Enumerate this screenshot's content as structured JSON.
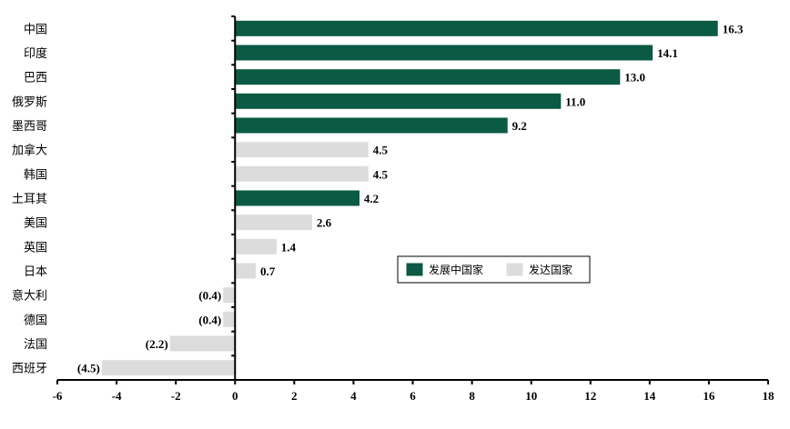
{
  "chart_data": {
    "type": "bar",
    "orientation": "horizontal",
    "categories": [
      "中国",
      "印度",
      "巴西",
      "俄罗斯",
      "墨西哥",
      "加拿大",
      "韩国",
      "土耳其",
      "美国",
      "英国",
      "日本",
      "意大利",
      "德国",
      "法国",
      "西班牙"
    ],
    "values": [
      16.3,
      14.1,
      13.0,
      11.0,
      9.2,
      4.5,
      4.5,
      4.2,
      2.6,
      1.4,
      0.7,
      -0.4,
      -0.4,
      -2.2,
      -4.5
    ],
    "value_labels": [
      "16.3",
      "14.1",
      "13.0",
      "11.0",
      "9.2",
      "4.5",
      "4.5",
      "4.2",
      "2.6",
      "1.4",
      "0.7",
      "(0.4)",
      "(0.4)",
      "(2.2)",
      "(4.5)"
    ],
    "groups": [
      "developing",
      "developing",
      "developing",
      "developing",
      "developing",
      "developed",
      "developed",
      "developing",
      "developed",
      "developed",
      "developed",
      "developed",
      "developed",
      "developed",
      "developed"
    ],
    "series": [
      {
        "key": "developing",
        "name": "发展中国家",
        "color": "#0b5a43"
      },
      {
        "key": "developed",
        "name": "发达国家",
        "color": "#dcdcdc"
      }
    ],
    "xlim": [
      -6,
      18
    ],
    "xticks": [
      "-6",
      "-4",
      "-2",
      "0",
      "2",
      "4",
      "6",
      "8",
      "10",
      "12",
      "14",
      "16",
      "18"
    ],
    "title": "",
    "xlabel": "",
    "ylabel": "",
    "grid": false,
    "legend_position": "center-right"
  }
}
